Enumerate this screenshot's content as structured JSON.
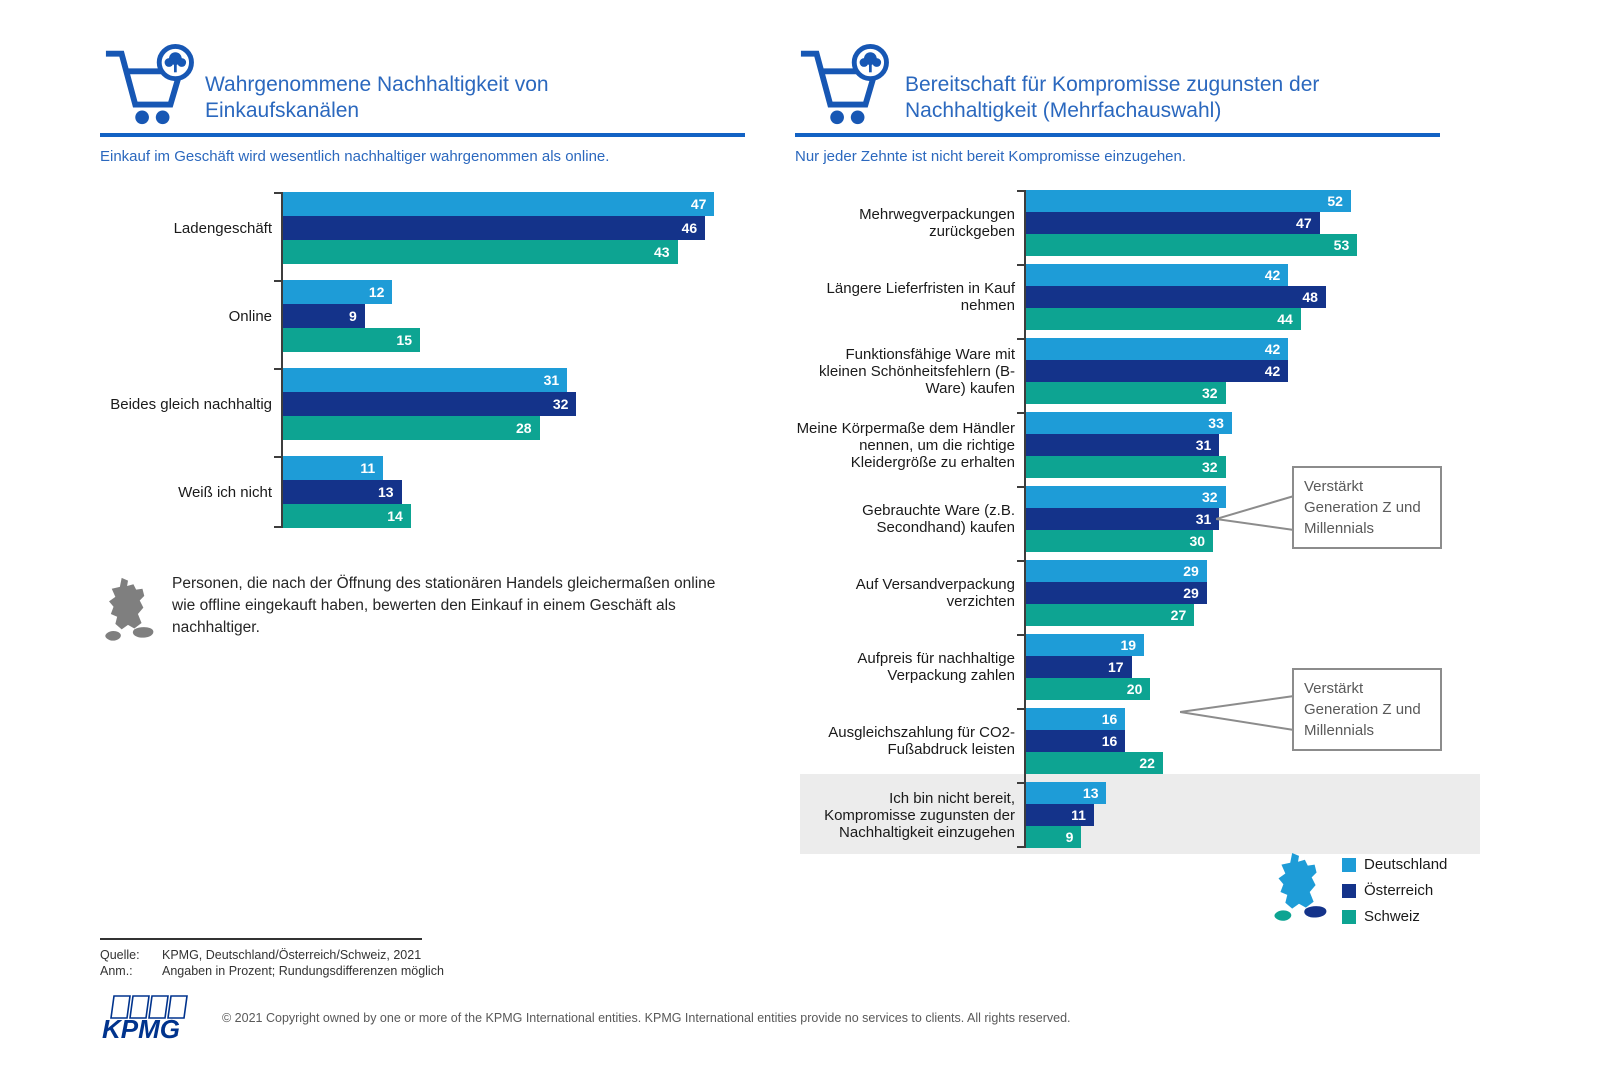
{
  "page": {
    "colors": {
      "deutschland": "#1E9CD7",
      "oesterreich": "#14338A",
      "schweiz": "#0DA492",
      "accent_blue": "#2B68BE",
      "rule_blue": "#1262C4",
      "highlight_band": "#ECECEC",
      "map_gray": "#7F7F7F",
      "logo_navy": "#00338D"
    },
    "footer": {
      "source_label": "Quelle:",
      "source_value": "KPMG, Deutschland/Österreich/Schweiz, 2021",
      "note_label": "Anm.:",
      "note_value": "Angaben in Prozent; Rundungsdifferenzen möglich",
      "copyright": "© 2021 Copyright owned by one or more of the KPMG International entities. KPMG International entities provide no services to clients. All rights reserved.",
      "logo_text": "KPMG"
    }
  },
  "left_panel": {
    "icon": "shopping-cart-with-tree-badge",
    "title_lines": [
      "Wahrgenommene Nachhaltigkeit von",
      "Einkaufskanälen"
    ],
    "subtitle": "Einkauf im Geschäft wird wesentlich nachhaltiger wahrgenommen als online.",
    "note_icon": "germany-map-gray",
    "note": "Personen, die nach der Öffnung des stationären Handels gleichermaßen online wie offline eingekauft haben, bewerten den Einkauf in einem Geschäft als nachhaltiger."
  },
  "right_panel": {
    "icon": "shopping-cart-with-tree-badge",
    "title_lines": [
      "Bereitschaft für Kompromisse zugunsten der",
      "Nachhaltigkeit (Mehrfachauswahl)"
    ],
    "subtitle": "Nur jeder Zehnte ist nicht bereit Kompromisse einzugehen.",
    "callouts": [
      "Verstärkt Generation Z und Millennials",
      "Verstärkt Generation Z und Millennials"
    ]
  },
  "legend": {
    "icon": "dach-map-colored",
    "items": [
      {
        "label": "Deutschland",
        "color": "#1E9CD7"
      },
      {
        "label": "Österreich",
        "color": "#14338A"
      },
      {
        "label": "Schweiz",
        "color": "#0DA492"
      }
    ]
  },
  "chart_data": [
    {
      "id": "perceived-sustainability-of-channels",
      "type": "bar",
      "orientation": "horizontal",
      "title": "Wahrgenommene Nachhaltigkeit von Einkaufskanälen",
      "subtitle": "Einkauf im Geschäft wird wesentlich nachhaltiger wahrgenommen als online.",
      "unit": "percent",
      "value_labels": "inside-end",
      "grid": false,
      "xlim": [
        0,
        50
      ],
      "categories": [
        "Ladengeschäft",
        "Online",
        "Beides gleich nachhaltig",
        "Weiß ich nicht"
      ],
      "series": [
        {
          "name": "Deutschland",
          "color": "#1E9CD7",
          "values": [
            47,
            12,
            31,
            11
          ]
        },
        {
          "name": "Österreich",
          "color": "#14338A",
          "values": [
            46,
            9,
            32,
            13
          ]
        },
        {
          "name": "Schweiz",
          "color": "#0DA492",
          "values": [
            43,
            15,
            28,
            14
          ]
        }
      ]
    },
    {
      "id": "willingness-to-compromise",
      "type": "bar",
      "orientation": "horizontal",
      "title": "Bereitschaft für Kompromisse zugunsten der Nachhaltigkeit (Mehrfachauswahl)",
      "subtitle": "Nur jeder Zehnte ist nicht bereit Kompromisse einzugehen.",
      "unit": "percent",
      "value_labels": "inside-end",
      "grid": false,
      "xlim": [
        0,
        67
      ],
      "legend_position": "bottom-right",
      "highlighted_category": "Ich bin nicht bereit, Kompromisse zugunsten der Nachhaltigkeit einzugehen",
      "categories": [
        "Mehrwegverpackungen zurückgeben",
        "Längere Lieferfristen in Kauf nehmen",
        "Funktionsfähige Ware mit kleinen Schönheitsfehlern (B-Ware) kaufen",
        "Meine Körpermaße dem Händler nennen, um die richtige Kleidergröße zu erhalten",
        "Gebrauchte Ware (z.B. Secondhand) kaufen",
        "Auf Versandverpackung verzichten",
        "Aufpreis für nachhaltige Verpackung zahlen",
        "Ausgleichszahlung für CO2-Fußabdruck leisten",
        "Ich bin nicht bereit, Kompromisse zugunsten der Nachhaltigkeit einzugehen"
      ],
      "series": [
        {
          "name": "Deutschland",
          "color": "#1E9CD7",
          "values": [
            52,
            42,
            42,
            33,
            32,
            29,
            19,
            16,
            13
          ]
        },
        {
          "name": "Österreich",
          "color": "#14338A",
          "values": [
            47,
            48,
            42,
            31,
            31,
            29,
            17,
            16,
            11
          ]
        },
        {
          "name": "Schweiz",
          "color": "#0DA492",
          "values": [
            53,
            44,
            32,
            32,
            30,
            27,
            20,
            22,
            9
          ]
        }
      ],
      "annotations": [
        {
          "text": "Verstärkt Generation Z und Millennials",
          "target": "Gebrauchte Ware (z.B. Secondhand) kaufen"
        },
        {
          "text": "Verstärkt Generation Z und Millennials",
          "target": "Ausgleichszahlung für CO2-Fußabdruck leisten"
        }
      ]
    }
  ]
}
